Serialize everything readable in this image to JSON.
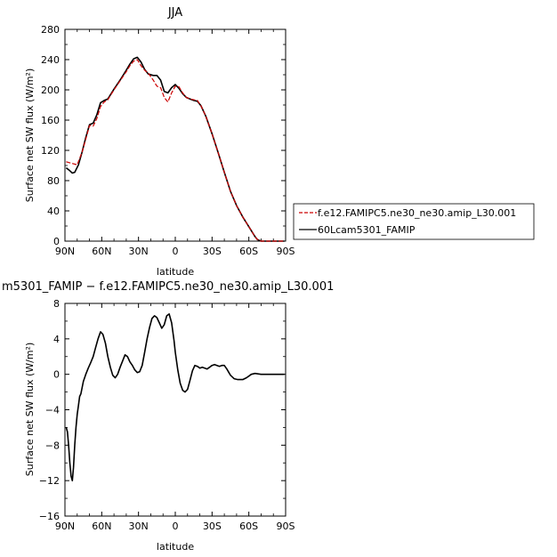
{
  "chart_data": [
    {
      "type": "line",
      "title": "JJA",
      "xlabel": "latitude",
      "ylabel": "Surface net SW flux (W/m²)",
      "xlim": [
        90,
        -90
      ],
      "ylim": [
        0,
        280
      ],
      "x_ticks": [
        90,
        60,
        30,
        0,
        -30,
        -60,
        -90
      ],
      "x_tick_labels": [
        "90N",
        "60N",
        "30N",
        "0",
        "30S",
        "60S",
        "90S"
      ],
      "y_ticks": [
        0,
        40,
        80,
        120,
        160,
        200,
        240,
        280
      ],
      "y_tick_labels": [
        "0",
        "40",
        "80",
        "120",
        "160",
        "200",
        "240",
        "280"
      ],
      "legend": [
        "f.e12.FAMIPC5.ne30_ne30.amip_L30.001",
        "60Lcam5301_FAMIP"
      ],
      "series": [
        {
          "name": "f.e12.FAMIPC5.ne30_ne30.amip_L30.001",
          "color": "#cc0000",
          "style": "dashed",
          "x": [
            89,
            85,
            80,
            76,
            73,
            70,
            67,
            64,
            61,
            58,
            55,
            50,
            45,
            40,
            37,
            34,
            31,
            28,
            25,
            22,
            18,
            15,
            12,
            9,
            6,
            3,
            0,
            -3,
            -6,
            -9,
            -12,
            -15,
            -18,
            -21,
            -25,
            -30,
            -35,
            -40,
            -45,
            -50,
            -55,
            -60,
            -65,
            -67,
            -70,
            -75,
            -80,
            -85,
            -89
          ],
          "values": [
            105,
            103,
            101,
            118,
            135,
            153,
            152,
            162,
            178,
            184,
            187,
            200,
            212,
            224,
            232,
            238,
            240,
            232,
            226,
            222,
            213,
            205,
            203,
            190,
            184,
            196,
            205,
            204,
            196,
            190,
            188,
            187,
            186,
            179,
            165,
            142,
            117,
            91,
            66,
            47,
            32,
            19,
            6,
            2,
            0,
            0,
            0,
            0,
            0
          ]
        },
        {
          "name": "60Lcam5301_FAMIP",
          "color": "#000000",
          "style": "solid",
          "x": [
            89,
            86,
            84,
            82,
            79,
            76,
            73,
            70,
            67,
            64,
            61,
            58,
            55,
            50,
            45,
            40,
            37,
            34,
            31,
            28,
            25,
            22,
            18,
            15,
            12,
            9,
            6,
            3,
            0,
            -3,
            -6,
            -9,
            -12,
            -15,
            -18,
            -21,
            -25,
            -30,
            -35,
            -40,
            -45,
            -50,
            -55,
            -60,
            -65,
            -67,
            -70,
            -75,
            -80,
            -85,
            -89
          ],
          "values": [
            97,
            93,
            90,
            91,
            101,
            118,
            137,
            154,
            156,
            167,
            183,
            186,
            188,
            201,
            213,
            226,
            234,
            241,
            243,
            237,
            227,
            221,
            219,
            219,
            213,
            198,
            196,
            203,
            207,
            202,
            195,
            190,
            188,
            186,
            185,
            179,
            165,
            142,
            117,
            91,
            66,
            47,
            32,
            19,
            6,
            2,
            0,
            0,
            0,
            0,
            0
          ]
        }
      ]
    },
    {
      "type": "line",
      "title": "m5301_FAMIP  −  f.e12.FAMIPC5.ne30_ne30.amip_L30.001",
      "xlabel": "latitude",
      "ylabel": "Surface net SW flux (W/m²)",
      "xlim": [
        90,
        -90
      ],
      "ylim": [
        -16,
        8
      ],
      "x_ticks": [
        90,
        60,
        30,
        0,
        -30,
        -60,
        -90
      ],
      "x_tick_labels": [
        "90N",
        "60N",
        "30N",
        "0",
        "30S",
        "60S",
        "90S"
      ],
      "y_ticks": [
        -16,
        -12,
        -8,
        -4,
        0,
        4,
        8
      ],
      "y_tick_labels": [
        "−16",
        "−12",
        "−8",
        "−4",
        "0",
        "4",
        "8"
      ],
      "series": [
        {
          "color": "#000000",
          "style": "solid",
          "x": [
            89,
            88,
            87,
            86,
            85,
            84,
            83,
            82,
            81,
            80,
            79,
            78,
            77,
            76,
            75,
            73,
            71,
            69,
            67,
            65,
            63,
            61,
            59,
            57,
            55,
            53,
            51,
            49,
            47,
            45,
            43,
            41,
            39,
            37,
            35,
            33,
            31,
            29,
            27,
            25,
            23,
            21,
            19,
            17,
            15,
            13,
            11,
            9,
            7,
            5,
            3,
            1,
            0,
            -2,
            -4,
            -6,
            -8,
            -10,
            -12,
            -14,
            -16,
            -18,
            -20,
            -22,
            -24,
            -26,
            -28,
            -30,
            -32,
            -34,
            -36,
            -38,
            -40,
            -42,
            -45,
            -48,
            -51,
            -55,
            -58,
            -60,
            -62,
            -65,
            -70,
            -75,
            -80,
            -85,
            -89
          ],
          "values": [
            -6,
            -6.5,
            -8,
            -10,
            -11.5,
            -12,
            -10.5,
            -8,
            -6,
            -4.5,
            -3.5,
            -2.5,
            -2.2,
            -1.5,
            -0.8,
            0,
            0.7,
            1.3,
            2.0,
            3.0,
            4.0,
            4.8,
            4.5,
            3.5,
            2.0,
            0.8,
            -0.1,
            -0.4,
            0,
            0.8,
            1.5,
            2.2,
            2.0,
            1.4,
            1.0,
            0.5,
            0.2,
            0.3,
            1.0,
            2.5,
            4.0,
            5.3,
            6.3,
            6.6,
            6.4,
            5.8,
            5.2,
            5.6,
            6.6,
            6.8,
            5.8,
            3.8,
            2.5,
            0.5,
            -1.0,
            -1.8,
            -2.0,
            -1.7,
            -0.7,
            0.4,
            1.0,
            0.9,
            0.7,
            0.8,
            0.7,
            0.6,
            0.8,
            1.0,
            1.1,
            1.0,
            0.9,
            1.0,
            1.0,
            0.6,
            -0.1,
            -0.5,
            -0.6,
            -0.6,
            -0.4,
            -0.2,
            0.0,
            0.1,
            0.0,
            0.0,
            0.0,
            0.0,
            0.0
          ]
        }
      ]
    }
  ]
}
